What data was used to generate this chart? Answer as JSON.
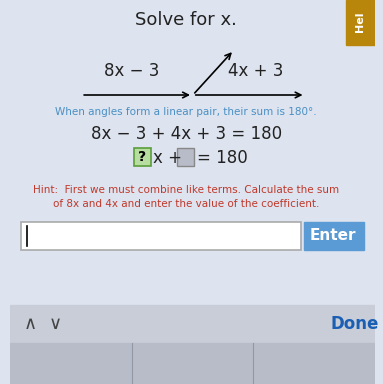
{
  "title": "Solve for x.",
  "title_fontsize": 13,
  "title_color": "#222222",
  "bg_color": "#dde3ef",
  "line_left_label": "8x − 3",
  "line_right_label": "4x + 3",
  "blue_line_text": "When angles form a linear pair, their sum is 180°.",
  "eq_line1": "8x − 3 + 4x + 3 = 180",
  "hint_text": "Hint:  First we must combine like terms. Calculate the sum\nof 8x and 4x and enter the value of the coefficient.",
  "enter_btn_color": "#5b9bd5",
  "enter_btn_text": "Enter",
  "enter_btn_text_color": "#ffffff",
  "done_text": "Done",
  "done_color": "#1a5fb4",
  "hint_color": "#c0392b",
  "blue_text_color": "#4a90c4",
  "eq_color": "#222222",
  "question_box_color": "#b8dda0",
  "question_box_border": "#5a9e3a",
  "grey_box_color": "#b8bcc8",
  "input_border_color": "#aaaaaa",
  "help_tab_color": "#b8860b",
  "help_tab_text": "Hel",
  "bottom_bar_color": "#c8cdd8",
  "very_bottom_color": "#b8bcc8"
}
